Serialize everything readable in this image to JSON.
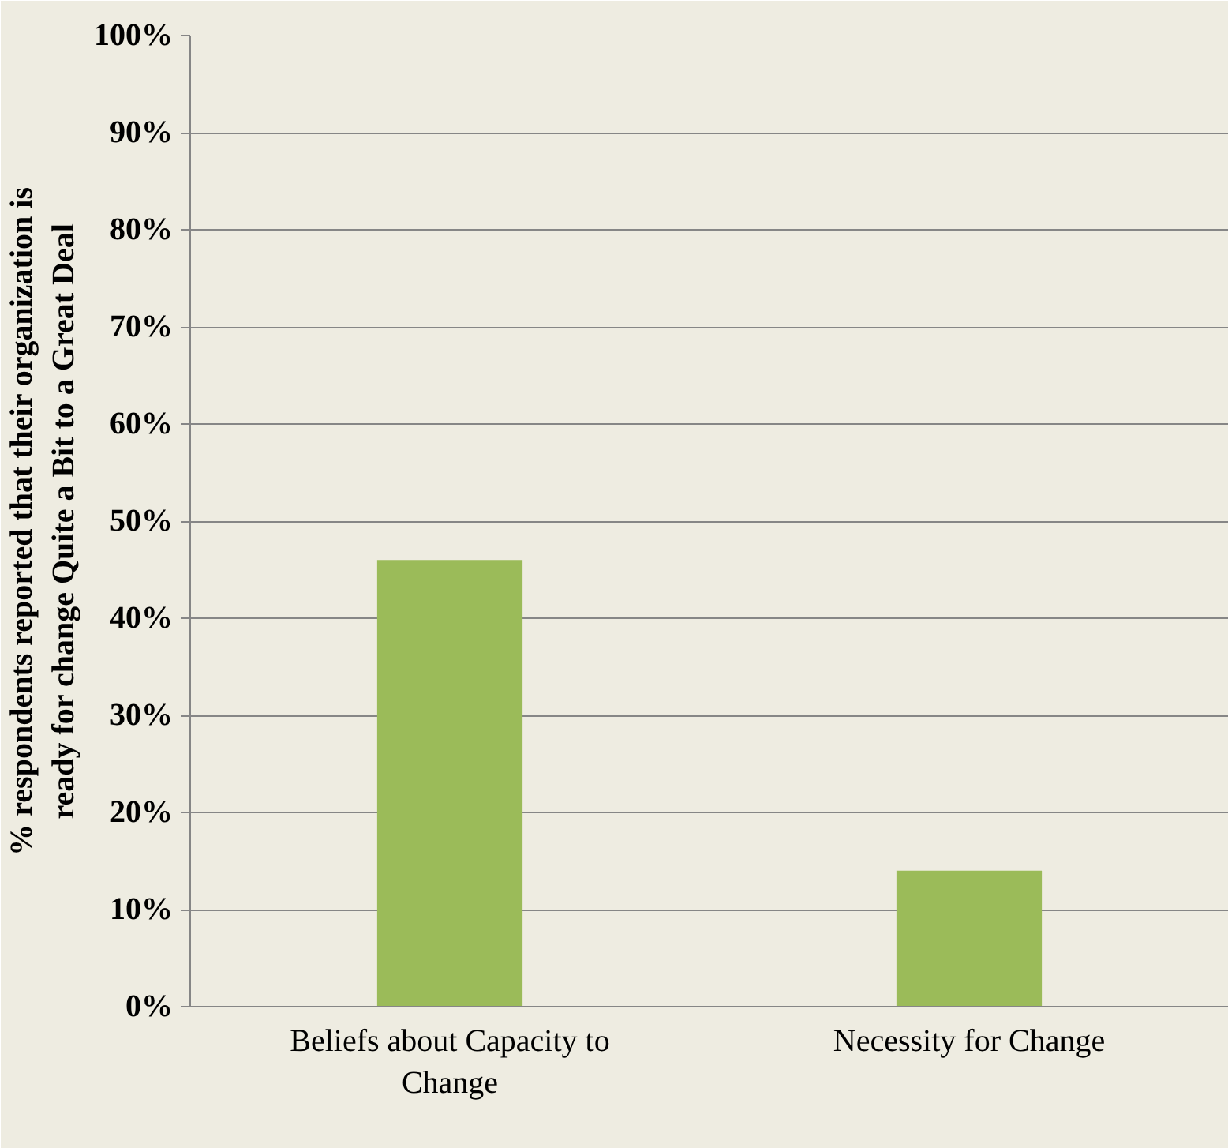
{
  "chart_data": {
    "type": "bar",
    "ylabel": "% respondents reported that their organization is\nready for change Quite a Bit to a Great Deal",
    "categories": [
      "Beliefs about Capacity to\nChange",
      "Necessity for Change"
    ],
    "values": [
      0.46,
      0.14
    ],
    "color": "#9bbb59",
    "ylim": [
      0,
      1
    ],
    "yticks": [
      {
        "value": 0,
        "label": "0%"
      },
      {
        "value": 0.1,
        "label": "10%"
      },
      {
        "value": 0.2,
        "label": "20%"
      },
      {
        "value": 0.3,
        "label": "30%"
      },
      {
        "value": 0.4,
        "label": "40%"
      },
      {
        "value": 0.5,
        "label": "50%"
      },
      {
        "value": 0.6,
        "label": "60%"
      },
      {
        "value": 0.7,
        "label": "70%"
      },
      {
        "value": 0.8,
        "label": "80%"
      },
      {
        "value": 0.9,
        "label": "90%"
      },
      {
        "value": 1,
        "label": "100%"
      }
    ],
    "grid": "y"
  }
}
